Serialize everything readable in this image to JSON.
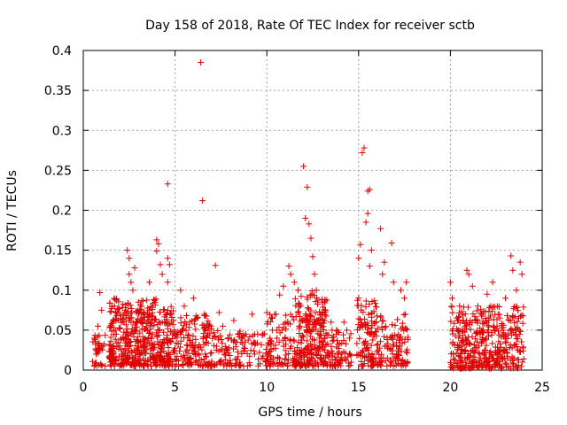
{
  "chart_data": {
    "type": "scatter",
    "title": "Day 158 of 2018, Rate Of TEC Index for receiver sctb",
    "xlabel": "GPS time / hours",
    "ylabel": "ROTI / TECUs",
    "xlim": [
      0,
      25
    ],
    "ylim": [
      0,
      0.4
    ],
    "grid": true,
    "marker": "+",
    "x_ticks": [
      0,
      5,
      10,
      15,
      20,
      25
    ],
    "x_tick_labels": [
      "0",
      "5",
      "10",
      "15",
      "20",
      "25"
    ],
    "y_ticks": [
      0,
      0.05,
      0.1,
      0.15,
      0.2,
      0.25,
      0.3,
      0.35,
      0.4
    ],
    "y_tick_labels": [
      "0",
      "0.05",
      "0.1",
      "0.15",
      "0.2",
      "0.25",
      "0.3",
      "0.35",
      "0.4"
    ],
    "series": [
      {
        "name": "ROTI",
        "color": "#e00000",
        "points": [
          [
            0.9,
            0.097
          ],
          [
            0.6,
            0.04
          ],
          [
            0.7,
            0.02
          ],
          [
            1.0,
            0.03
          ],
          [
            1.0,
            0.075
          ],
          [
            0.8,
            0.055
          ],
          [
            1.5,
            0.03
          ],
          [
            1.6,
            0.06
          ],
          [
            1.7,
            0.08
          ],
          [
            1.8,
            0.045
          ],
          [
            2.0,
            0.07
          ],
          [
            2.1,
            0.02
          ],
          [
            2.4,
            0.15
          ],
          [
            2.5,
            0.14
          ],
          [
            2.6,
            0.11
          ],
          [
            2.7,
            0.1
          ],
          [
            2.8,
            0.128
          ],
          [
            2.5,
            0.12
          ],
          [
            3.0,
            0.085
          ],
          [
            3.2,
            0.06
          ],
          [
            3.5,
            0.07
          ],
          [
            3.6,
            0.11
          ],
          [
            3.7,
            0.04
          ],
          [
            4.0,
            0.163
          ],
          [
            4.1,
            0.158
          ],
          [
            4.0,
            0.149
          ],
          [
            4.2,
            0.132
          ],
          [
            4.3,
            0.12
          ],
          [
            4.6,
            0.233
          ],
          [
            4.6,
            0.14
          ],
          [
            4.7,
            0.132
          ],
          [
            4.6,
            0.11
          ],
          [
            4.8,
            0.06
          ],
          [
            5.3,
            0.1
          ],
          [
            5.5,
            0.08
          ],
          [
            5.8,
            0.06
          ],
          [
            6.0,
            0.09
          ],
          [
            6.2,
            0.065
          ],
          [
            6.4,
            0.385
          ],
          [
            6.5,
            0.212
          ],
          [
            6.6,
            0.07
          ],
          [
            6.8,
            0.05
          ],
          [
            7.2,
            0.131
          ],
          [
            7.4,
            0.072
          ],
          [
            7.6,
            0.055
          ],
          [
            7.9,
            0.04
          ],
          [
            8.2,
            0.062
          ],
          [
            8.5,
            0.045
          ],
          [
            8.8,
            0.035
          ],
          [
            9.2,
            0.07
          ],
          [
            9.5,
            0.045
          ],
          [
            10.0,
            0.072
          ],
          [
            10.3,
            0.05
          ],
          [
            10.5,
            0.07
          ],
          [
            10.7,
            0.094
          ],
          [
            10.9,
            0.105
          ],
          [
            11.2,
            0.13
          ],
          [
            11.3,
            0.12
          ],
          [
            11.5,
            0.11
          ],
          [
            11.7,
            0.1
          ],
          [
            12.0,
            0.255
          ],
          [
            12.2,
            0.229
          ],
          [
            12.1,
            0.19
          ],
          [
            12.3,
            0.183
          ],
          [
            12.4,
            0.165
          ],
          [
            12.5,
            0.142
          ],
          [
            12.6,
            0.12
          ],
          [
            12.7,
            0.1
          ],
          [
            13.0,
            0.085
          ],
          [
            13.2,
            0.075
          ],
          [
            13.5,
            0.06
          ],
          [
            13.8,
            0.05
          ],
          [
            14.2,
            0.06
          ],
          [
            14.5,
            0.04
          ],
          [
            15.0,
            0.09
          ],
          [
            15.3,
            0.278
          ],
          [
            15.2,
            0.272
          ],
          [
            15.6,
            0.226
          ],
          [
            15.5,
            0.224
          ],
          [
            15.5,
            0.196
          ],
          [
            15.4,
            0.185
          ],
          [
            15.1,
            0.157
          ],
          [
            15.0,
            0.14
          ],
          [
            15.7,
            0.15
          ],
          [
            15.6,
            0.13
          ],
          [
            16.2,
            0.177
          ],
          [
            16.4,
            0.135
          ],
          [
            16.3,
            0.12
          ],
          [
            16.8,
            0.159
          ],
          [
            16.9,
            0.11
          ],
          [
            17.3,
            0.1
          ],
          [
            17.5,
            0.09
          ],
          [
            17.6,
            0.11
          ],
          [
            20.0,
            0.11
          ],
          [
            20.1,
            0.09
          ],
          [
            20.5,
            0.08
          ],
          [
            20.9,
            0.125
          ],
          [
            21.0,
            0.12
          ],
          [
            21.2,
            0.105
          ],
          [
            21.5,
            0.08
          ],
          [
            22.0,
            0.095
          ],
          [
            22.3,
            0.11
          ],
          [
            22.6,
            0.07
          ],
          [
            23.0,
            0.09
          ],
          [
            23.3,
            0.143
          ],
          [
            23.4,
            0.125
          ],
          [
            23.6,
            0.1
          ],
          [
            23.8,
            0.135
          ],
          [
            23.9,
            0.12
          ]
        ],
        "dense_ranges": [
          {
            "x": [
              0.5,
              1.2
            ],
            "y": [
              0.005,
              0.05
            ],
            "n": 35
          },
          {
            "x": [
              1.4,
              4.0
            ],
            "y": [
              0.005,
              0.09
            ],
            "n": 380
          },
          {
            "x": [
              4.0,
              5.0
            ],
            "y": [
              0.005,
              0.08
            ],
            "n": 120
          },
          {
            "x": [
              5.0,
              7.0
            ],
            "y": [
              0.005,
              0.07
            ],
            "n": 150
          },
          {
            "x": [
              7.0,
              10.0
            ],
            "y": [
              0.005,
              0.05
            ],
            "n": 120
          },
          {
            "x": [
              10.0,
              11.5
            ],
            "y": [
              0.005,
              0.07
            ],
            "n": 90
          },
          {
            "x": [
              11.5,
              13.3
            ],
            "y": [
              0.005,
              0.1
            ],
            "n": 250
          },
          {
            "x": [
              13.3,
              14.6
            ],
            "y": [
              0.005,
              0.05
            ],
            "n": 70
          },
          {
            "x": [
              14.9,
              16.0
            ],
            "y": [
              0.005,
              0.09
            ],
            "n": 110
          },
          {
            "x": [
              16.0,
              17.7
            ],
            "y": [
              0.005,
              0.07
            ],
            "n": 110
          },
          {
            "x": [
              20.0,
              24.0
            ],
            "y": [
              0.002,
              0.08
            ],
            "n": 420
          }
        ]
      }
    ]
  }
}
